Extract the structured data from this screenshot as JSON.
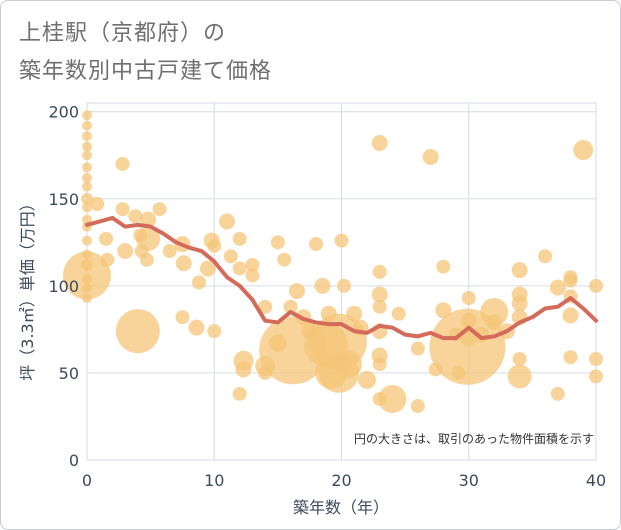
{
  "title_line1": "上桂駅（京都府）の",
  "title_line2": "築年数別中古戸建て価格",
  "colors": {
    "bubble_fill": "#f5c678",
    "line": "#d46b5a",
    "grid": "#d6dde6",
    "axis_text": "#3d4a5c"
  },
  "chart_data": {
    "type": "scatter",
    "xlabel": "築年数（年）",
    "ylabel": "坪（3.3㎡）単価（万円）",
    "xlim": [
      0,
      40
    ],
    "ylim": [
      0,
      205
    ],
    "x_ticks": [
      "0",
      "10",
      "20",
      "30",
      "40"
    ],
    "y_ticks": [
      "0",
      "50",
      "100",
      "150",
      "200"
    ],
    "x_tick_values": [
      0,
      10,
      20,
      30,
      40
    ],
    "y_tick_values": [
      0,
      50,
      100,
      150,
      200
    ],
    "grid": true,
    "annotation": "円の大きさは、取引のあった物件面積を示す",
    "series": [
      {
        "kind": "bubble",
        "points": [
          {
            "x": 0,
            "y": 198,
            "s": 5
          },
          {
            "x": 0,
            "y": 192,
            "s": 5
          },
          {
            "x": 0,
            "y": 186,
            "s": 5
          },
          {
            "x": 0,
            "y": 180,
            "s": 5
          },
          {
            "x": 0,
            "y": 175,
            "s": 5
          },
          {
            "x": 0,
            "y": 168,
            "s": 5
          },
          {
            "x": 0,
            "y": 162,
            "s": 5
          },
          {
            "x": 0,
            "y": 157,
            "s": 5
          },
          {
            "x": 0,
            "y": 150,
            "s": 6
          },
          {
            "x": 0,
            "y": 145,
            "s": 5
          },
          {
            "x": 0,
            "y": 138,
            "s": 5
          },
          {
            "x": 0,
            "y": 134,
            "s": 5
          },
          {
            "x": 0,
            "y": 126,
            "s": 5
          },
          {
            "x": 0,
            "y": 118,
            "s": 5
          },
          {
            "x": 0,
            "y": 112,
            "s": 6
          },
          {
            "x": 0,
            "y": 104,
            "s": 5
          },
          {
            "x": 0,
            "y": 99,
            "s": 5
          },
          {
            "x": 0,
            "y": 93,
            "s": 5
          },
          {
            "x": 0,
            "y": 106,
            "s": 24
          },
          {
            "x": 0.8,
            "y": 147,
            "s": 7
          },
          {
            "x": 1.5,
            "y": 127,
            "s": 7
          },
          {
            "x": 1.6,
            "y": 115,
            "s": 7
          },
          {
            "x": 2.8,
            "y": 170,
            "s": 7
          },
          {
            "x": 2.8,
            "y": 144,
            "s": 7
          },
          {
            "x": 3,
            "y": 120,
            "s": 8
          },
          {
            "x": 3.8,
            "y": 140,
            "s": 7
          },
          {
            "x": 4.3,
            "y": 120,
            "s": 7
          },
          {
            "x": 4.2,
            "y": 129,
            "s": 7
          },
          {
            "x": 4.8,
            "y": 138,
            "s": 8
          },
          {
            "x": 4.7,
            "y": 115,
            "s": 7
          },
          {
            "x": 4.8,
            "y": 127,
            "s": 12
          },
          {
            "x": 5.7,
            "y": 144,
            "s": 7
          },
          {
            "x": 6.5,
            "y": 120,
            "s": 7
          },
          {
            "x": 4,
            "y": 74,
            "s": 22
          },
          {
            "x": 7.5,
            "y": 124,
            "s": 8
          },
          {
            "x": 7.6,
            "y": 113,
            "s": 8
          },
          {
            "x": 7.5,
            "y": 82,
            "s": 7
          },
          {
            "x": 8.6,
            "y": 76,
            "s": 8
          },
          {
            "x": 8.8,
            "y": 102,
            "s": 7
          },
          {
            "x": 9.5,
            "y": 110,
            "s": 8
          },
          {
            "x": 9.8,
            "y": 126,
            "s": 8
          },
          {
            "x": 10,
            "y": 123,
            "s": 7
          },
          {
            "x": 10,
            "y": 74,
            "s": 7
          },
          {
            "x": 11,
            "y": 137,
            "s": 8
          },
          {
            "x": 11.3,
            "y": 117,
            "s": 7
          },
          {
            "x": 12,
            "y": 127,
            "s": 7
          },
          {
            "x": 12,
            "y": 110,
            "s": 7
          },
          {
            "x": 13,
            "y": 112,
            "s": 7
          },
          {
            "x": 13,
            "y": 106,
            "s": 7
          },
          {
            "x": 12.3,
            "y": 57,
            "s": 10
          },
          {
            "x": 12.3,
            "y": 52,
            "s": 8
          },
          {
            "x": 12,
            "y": 38,
            "s": 7
          },
          {
            "x": 14,
            "y": 88,
            "s": 7
          },
          {
            "x": 14,
            "y": 54,
            "s": 10
          },
          {
            "x": 14,
            "y": 50,
            "s": 7
          },
          {
            "x": 15,
            "y": 125,
            "s": 7
          },
          {
            "x": 15.5,
            "y": 115,
            "s": 7
          },
          {
            "x": 15,
            "y": 67,
            "s": 9
          },
          {
            "x": 16.2,
            "y": 63,
            "s": 34
          },
          {
            "x": 16,
            "y": 88,
            "s": 7
          },
          {
            "x": 16.5,
            "y": 97,
            "s": 8
          },
          {
            "x": 17,
            "y": 82,
            "s": 8
          },
          {
            "x": 17.5,
            "y": 74,
            "s": 8
          },
          {
            "x": 18,
            "y": 124,
            "s": 7
          },
          {
            "x": 18.5,
            "y": 100,
            "s": 8
          },
          {
            "x": 19,
            "y": 84,
            "s": 8
          },
          {
            "x": 18.8,
            "y": 66,
            "s": 22
          },
          {
            "x": 19.2,
            "y": 50,
            "s": 16
          },
          {
            "x": 19.8,
            "y": 68,
            "s": 28
          },
          {
            "x": 19.8,
            "y": 50,
            "s": 20
          },
          {
            "x": 20,
            "y": 126,
            "s": 7
          },
          {
            "x": 20.2,
            "y": 100,
            "s": 7
          },
          {
            "x": 21,
            "y": 84,
            "s": 8
          },
          {
            "x": 21.5,
            "y": 76,
            "s": 8
          },
          {
            "x": 22,
            "y": 46,
            "s": 9
          },
          {
            "x": 20.5,
            "y": 55,
            "s": 14
          },
          {
            "x": 23,
            "y": 182,
            "s": 8
          },
          {
            "x": 23,
            "y": 108,
            "s": 7
          },
          {
            "x": 23,
            "y": 95,
            "s": 8
          },
          {
            "x": 23,
            "y": 88,
            "s": 7
          },
          {
            "x": 23,
            "y": 74,
            "s": 8
          },
          {
            "x": 23,
            "y": 60,
            "s": 8
          },
          {
            "x": 23,
            "y": 55,
            "s": 7
          },
          {
            "x": 23,
            "y": 35,
            "s": 7
          },
          {
            "x": 24,
            "y": 35,
            "s": 14
          },
          {
            "x": 24.5,
            "y": 84,
            "s": 7
          },
          {
            "x": 26,
            "y": 64,
            "s": 7
          },
          {
            "x": 26,
            "y": 31,
            "s": 7
          },
          {
            "x": 27,
            "y": 174,
            "s": 8
          },
          {
            "x": 27.4,
            "y": 52,
            "s": 7
          },
          {
            "x": 28,
            "y": 111,
            "s": 7
          },
          {
            "x": 28,
            "y": 86,
            "s": 8
          },
          {
            "x": 29,
            "y": 72,
            "s": 7
          },
          {
            "x": 29.2,
            "y": 50,
            "s": 7
          },
          {
            "x": 30,
            "y": 93,
            "s": 7
          },
          {
            "x": 30,
            "y": 80,
            "s": 8
          },
          {
            "x": 30,
            "y": 70,
            "s": 8
          },
          {
            "x": 29.9,
            "y": 65,
            "s": 38
          },
          {
            "x": 31,
            "y": 72,
            "s": 8
          },
          {
            "x": 32,
            "y": 85,
            "s": 14
          },
          {
            "x": 32,
            "y": 79,
            "s": 8
          },
          {
            "x": 33,
            "y": 74,
            "s": 8
          },
          {
            "x": 34,
            "y": 109,
            "s": 8
          },
          {
            "x": 34,
            "y": 95,
            "s": 8
          },
          {
            "x": 34,
            "y": 90,
            "s": 8
          },
          {
            "x": 34,
            "y": 82,
            "s": 8
          },
          {
            "x": 34,
            "y": 58,
            "s": 7
          },
          {
            "x": 34,
            "y": 48,
            "s": 12
          },
          {
            "x": 36,
            "y": 117,
            "s": 7
          },
          {
            "x": 37,
            "y": 99,
            "s": 8
          },
          {
            "x": 37,
            "y": 38,
            "s": 7
          },
          {
            "x": 38,
            "y": 105,
            "s": 7
          },
          {
            "x": 38,
            "y": 103,
            "s": 7
          },
          {
            "x": 38,
            "y": 94,
            "s": 7
          },
          {
            "x": 38,
            "y": 83,
            "s": 8
          },
          {
            "x": 38,
            "y": 59,
            "s": 7
          },
          {
            "x": 39,
            "y": 178,
            "s": 10
          },
          {
            "x": 40,
            "y": 100,
            "s": 7
          },
          {
            "x": 40,
            "y": 58,
            "s": 7
          },
          {
            "x": 40,
            "y": 48,
            "s": 7
          }
        ]
      },
      {
        "kind": "line",
        "x": [
          0,
          1,
          2,
          3,
          4,
          5,
          6,
          7,
          8,
          9,
          10,
          11,
          12,
          13,
          14,
          15,
          16,
          17,
          18,
          19,
          20,
          21,
          22,
          23,
          24,
          25,
          26,
          27,
          28,
          29,
          30,
          31,
          32,
          33,
          34,
          35,
          36,
          37,
          38,
          39,
          40
        ],
        "y": [
          135,
          137,
          139,
          134,
          135,
          134,
          130,
          125,
          122,
          120,
          114,
          105,
          100,
          92,
          80,
          79,
          85,
          81,
          79,
          78,
          78,
          74,
          73,
          77,
          76,
          72,
          71,
          73,
          70,
          70,
          76,
          70,
          71,
          74,
          79,
          82,
          87,
          88,
          93,
          87,
          80
        ]
      }
    ]
  }
}
